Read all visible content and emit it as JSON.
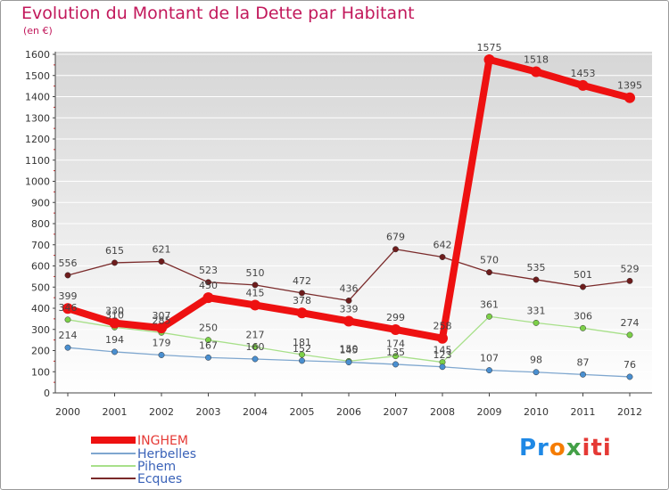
{
  "chart_data": {
    "type": "line",
    "title": "Evolution du Montant de la Dette par Habitant",
    "subtitle": "(en €)",
    "xlabel": "",
    "ylabel": "",
    "ylim": [
      0,
      1600
    ],
    "ytick_step": 100,
    "grid": true,
    "categories": [
      "2000",
      "2001",
      "2002",
      "2003",
      "2004",
      "2005",
      "2006",
      "2007",
      "2008",
      "2009",
      "2010",
      "2011",
      "2012"
    ],
    "series": [
      {
        "name": "INGHEM",
        "color": "#ee1111",
        "marker": "#ee1111",
        "weight": "heavy",
        "values": [
          399,
          330,
          307,
          450,
          415,
          378,
          339,
          299,
          258,
          1575,
          1518,
          1453,
          1395
        ]
      },
      {
        "name": "Herbelles",
        "color": "#7fa7cf",
        "marker": "#4a8fd0",
        "weight": "thin",
        "values": [
          214,
          194,
          179,
          167,
          160,
          152,
          145,
          135,
          123,
          107,
          98,
          87,
          76
        ]
      },
      {
        "name": "Pihem",
        "color": "#a8e08a",
        "marker": "#7cd048",
        "weight": "thin",
        "values": [
          346,
          310,
          285,
          250,
          217,
          181,
          150,
          174,
          145,
          361,
          331,
          306,
          274
        ]
      },
      {
        "name": "Ecques",
        "color": "#7a2a2a",
        "marker": "#6e1c1c",
        "weight": "thin",
        "values": [
          556,
          615,
          621,
          523,
          510,
          472,
          436,
          679,
          642,
          570,
          535,
          501,
          529
        ]
      }
    ],
    "data_labels": {
      "INGHEM": [
        "399",
        "330",
        "307",
        "450",
        "415",
        "378",
        "339",
        "299",
        "258",
        "1575",
        "1518",
        "1453",
        "1395"
      ],
      "Herbelles": [
        "214",
        "194",
        "179",
        "167",
        "160",
        "152",
        "145",
        "135",
        "123",
        "107",
        "98",
        "87",
        "76"
      ],
      "Pihem": [
        "346",
        "310",
        "285",
        "250",
        "217",
        "181",
        "150",
        "174",
        "145",
        "361",
        "331",
        "306",
        "274"
      ],
      "Ecques": [
        "556",
        "615",
        "621",
        "523",
        "510",
        "472",
        "436",
        "679",
        "642",
        "570",
        "535",
        "501",
        "529"
      ]
    },
    "legend_position": "bottom-left"
  },
  "logo_text": {
    "p1": "Pr",
    "p2": "o",
    "p3": "x",
    "p4": "iti"
  }
}
